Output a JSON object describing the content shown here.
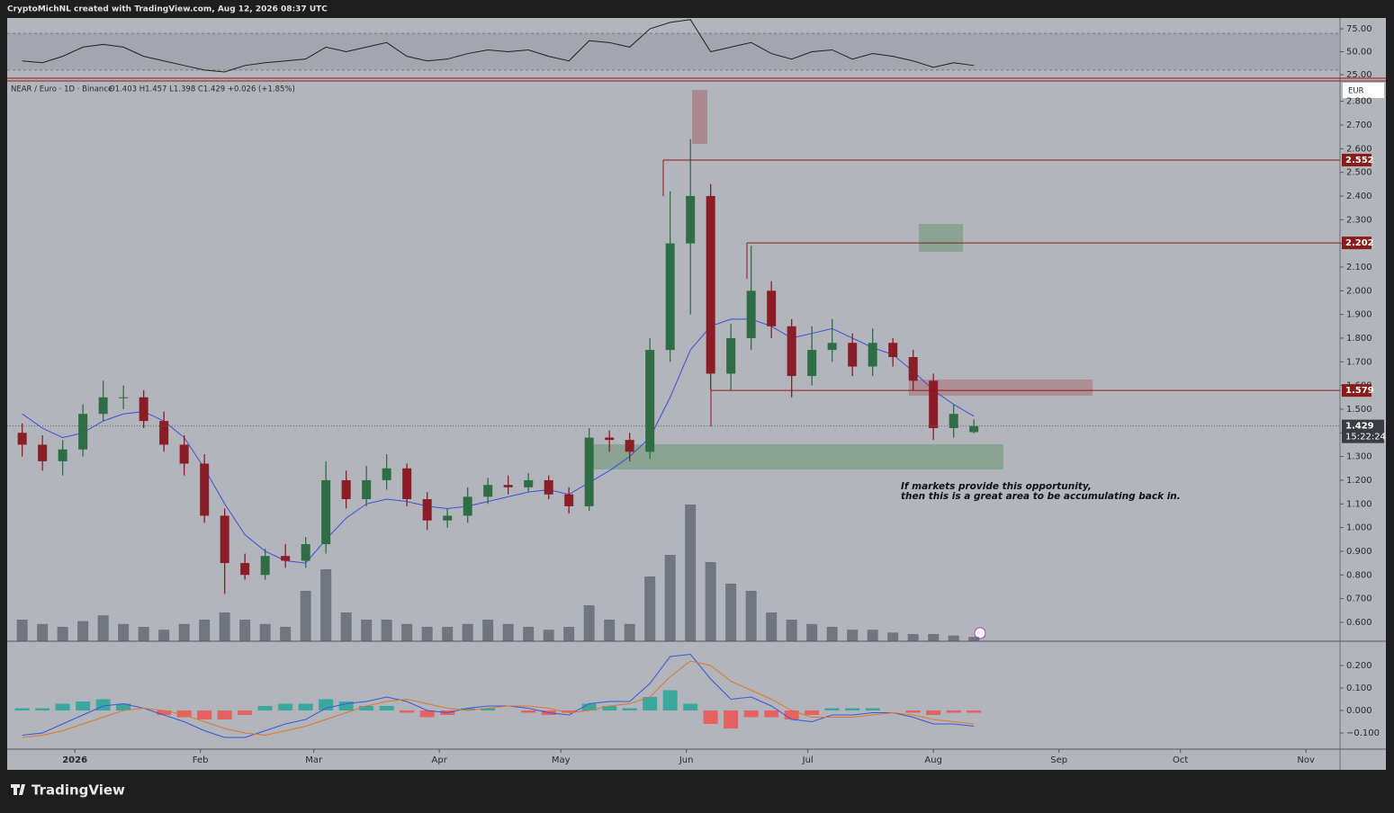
{
  "header": {
    "creator": "CryptoMichNL created with TradingView.com, Aug 12, 2026 08:37 UTC"
  },
  "footer": {
    "brand": "TradingView"
  },
  "chart_data": {
    "type": "candlestick",
    "title": "NEAR / Euro · 1D · Binance",
    "subtitle": "O1.403 H1.457 L1.398 C1.429 +0.026 (+1.85%)",
    "currency": "EUR",
    "countdown": "15:22:24",
    "annotation": [
      "If markets provide this opportunity,",
      "then this is a great area to be accumulating back in."
    ],
    "xlim": [
      -16.7,
      312.4
    ],
    "xticks": [
      {
        "value": 0,
        "label": "2026"
      },
      {
        "value": 31,
        "label": "Feb"
      },
      {
        "value": 59,
        "label": "Mar"
      },
      {
        "value": 90,
        "label": "Apr"
      },
      {
        "value": 120,
        "label": "May"
      },
      {
        "value": 151,
        "label": "Jun"
      },
      {
        "value": 181,
        "label": "Jul"
      },
      {
        "value": 212,
        "label": "Aug"
      },
      {
        "value": 243,
        "label": "Sep"
      },
      {
        "value": 273,
        "label": "Oct"
      },
      {
        "value": 304,
        "label": "Nov"
      }
    ],
    "ylim": [
      0.52,
      2.886
    ],
    "yticks": [
      {
        "value": 0.6,
        "label": "0.600"
      },
      {
        "value": 0.7,
        "label": "0.700"
      },
      {
        "value": 0.8,
        "label": "0.800"
      },
      {
        "value": 0.9,
        "label": "0.900"
      },
      {
        "value": 1.0,
        "label": "1.000"
      },
      {
        "value": 1.1,
        "label": "1.100"
      },
      {
        "value": 1.2,
        "label": "1.200"
      },
      {
        "value": 1.3,
        "label": "1.300"
      },
      {
        "value": 1.4,
        "label": "1.400"
      },
      {
        "value": 1.5,
        "label": "1.500"
      },
      {
        "value": 1.6,
        "label": "1.600"
      },
      {
        "value": 1.7,
        "label": "1.700"
      },
      {
        "value": 1.8,
        "label": "1.800"
      },
      {
        "value": 1.9,
        "label": "1.900"
      },
      {
        "value": 2.0,
        "label": "2.000"
      },
      {
        "value": 2.1,
        "label": "2.100"
      },
      {
        "value": 2.2,
        "label": "2.200"
      },
      {
        "value": 2.3,
        "label": "2.300"
      },
      {
        "value": 2.4,
        "label": "2.400"
      },
      {
        "value": 2.5,
        "label": "2.500"
      },
      {
        "value": 2.6,
        "label": "2.600"
      },
      {
        "value": 2.7,
        "label": "2.700"
      },
      {
        "value": 2.8,
        "label": "2.800"
      }
    ],
    "x": [
      -13,
      -8,
      -3,
      2,
      7,
      12,
      17,
      22,
      27,
      32,
      37,
      42,
      47,
      52,
      57,
      62,
      67,
      72,
      77,
      82,
      87,
      92,
      97,
      102,
      107,
      112,
      117,
      122,
      127,
      132,
      137,
      142,
      147,
      152,
      157,
      162,
      167,
      172,
      177,
      182,
      187,
      192,
      197,
      202,
      207,
      212,
      217,
      222
    ],
    "open": [
      1.4,
      1.35,
      1.28,
      1.33,
      1.48,
      1.55,
      1.55,
      1.45,
      1.35,
      1.27,
      1.05,
      0.85,
      0.8,
      0.88,
      0.86,
      0.93,
      1.2,
      1.12,
      1.2,
      1.25,
      1.12,
      1.03,
      1.05,
      1.13,
      1.18,
      1.17,
      1.2,
      1.14,
      1.09,
      1.38,
      1.37,
      1.32,
      1.75,
      2.2,
      2.4,
      1.65,
      1.8,
      2.0,
      1.85,
      1.64,
      1.75,
      1.78,
      1.68,
      1.78,
      1.72,
      1.62,
      1.42,
      1.403
    ],
    "high": [
      1.44,
      1.39,
      1.37,
      1.52,
      1.62,
      1.6,
      1.58,
      1.49,
      1.39,
      1.31,
      1.08,
      0.89,
      0.91,
      0.93,
      0.96,
      1.28,
      1.24,
      1.26,
      1.31,
      1.27,
      1.15,
      1.08,
      1.17,
      1.21,
      1.22,
      1.23,
      1.22,
      1.17,
      1.42,
      1.41,
      1.4,
      1.8,
      2.42,
      2.64,
      2.45,
      1.86,
      2.19,
      2.04,
      1.88,
      1.85,
      1.88,
      1.82,
      1.84,
      1.8,
      1.75,
      1.65,
      1.52,
      1.457
    ],
    "low": [
      1.3,
      1.24,
      1.22,
      1.3,
      1.45,
      1.5,
      1.42,
      1.32,
      1.22,
      1.02,
      0.72,
      0.78,
      0.78,
      0.83,
      0.83,
      0.89,
      1.08,
      1.09,
      1.16,
      1.09,
      0.99,
      1.0,
      1.02,
      1.1,
      1.14,
      1.15,
      1.12,
      1.06,
      1.07,
      1.32,
      1.28,
      1.29,
      1.7,
      1.9,
      1.58,
      1.58,
      1.75,
      1.8,
      1.55,
      1.6,
      1.7,
      1.64,
      1.64,
      1.68,
      1.58,
      1.37,
      1.38,
      1.398
    ],
    "close": [
      1.35,
      1.28,
      1.33,
      1.48,
      1.55,
      1.55,
      1.45,
      1.35,
      1.27,
      1.05,
      0.85,
      0.8,
      0.88,
      0.86,
      0.93,
      1.2,
      1.12,
      1.2,
      1.25,
      1.12,
      1.03,
      1.05,
      1.13,
      1.18,
      1.17,
      1.2,
      1.14,
      1.09,
      1.38,
      1.37,
      1.32,
      1.75,
      2.2,
      2.4,
      1.65,
      1.8,
      2.0,
      1.85,
      1.64,
      1.75,
      1.78,
      1.68,
      1.78,
      1.72,
      1.62,
      1.42,
      1.48,
      1.429
    ],
    "up_color": "#2f6e45",
    "down_color": "#8a1d25",
    "ma": [
      1.48,
      1.42,
      1.38,
      1.4,
      1.45,
      1.48,
      1.49,
      1.45,
      1.38,
      1.25,
      1.1,
      0.97,
      0.9,
      0.86,
      0.85,
      0.95,
      1.04,
      1.1,
      1.12,
      1.11,
      1.09,
      1.08,
      1.09,
      1.11,
      1.13,
      1.15,
      1.16,
      1.14,
      1.19,
      1.24,
      1.3,
      1.38,
      1.55,
      1.75,
      1.85,
      1.88,
      1.88,
      1.85,
      1.8,
      1.82,
      1.84,
      1.8,
      1.76,
      1.73,
      1.66,
      1.58,
      1.52,
      1.47
    ],
    "ma_color": "#3f4fd8",
    "volume": [
      15,
      12,
      10,
      14,
      18,
      12,
      10,
      8,
      12,
      15,
      20,
      15,
      12,
      10,
      35,
      50,
      20,
      15,
      15,
      12,
      10,
      10,
      12,
      15,
      12,
      10,
      8,
      10,
      25,
      15,
      12,
      45,
      60,
      95,
      55,
      40,
      35,
      20,
      15,
      12,
      10,
      8,
      8,
      6,
      5,
      5,
      4,
      3
    ],
    "volume_lim": [
      0,
      100
    ],
    "volume_color": "#555a66",
    "levels": [
      2.552,
      2.202,
      1.579
    ],
    "level_color": "#8b1a1a",
    "rsi": {
      "ylim": [
        20.1,
        86.8
      ],
      "yticks": [
        {
          "value": 75,
          "label": "75.00"
        },
        {
          "value": 50,
          "label": "50.00"
        },
        {
          "value": 25,
          "label": "25.00"
        }
      ],
      "band": [
        30,
        70
      ],
      "color": "#222222",
      "values": [
        40,
        38,
        45,
        55,
        58,
        55,
        45,
        40,
        35,
        30,
        28,
        35,
        38,
        40,
        42,
        55,
        50,
        55,
        60,
        45,
        40,
        42,
        48,
        52,
        50,
        52,
        45,
        40,
        62,
        60,
        55,
        75,
        82,
        85,
        50,
        55,
        60,
        48,
        42,
        50,
        52,
        42,
        48,
        45,
        40,
        33,
        38,
        35
      ]
    },
    "macd": {
      "ylim": [
        -0.172,
        0.308
      ],
      "yticks": [
        {
          "value": 0.2,
          "label": "0.200"
        },
        {
          "value": 0.1,
          "label": "0.100"
        },
        {
          "value": 0,
          "label": "0.000"
        },
        {
          "value": -0.1,
          "label": "−0.100"
        }
      ],
      "macd": [
        -0.11,
        -0.1,
        -0.06,
        -0.02,
        0.02,
        0.03,
        0.01,
        -0.02,
        -0.05,
        -0.09,
        -0.12,
        -0.12,
        -0.09,
        -0.06,
        -0.04,
        0.01,
        0.03,
        0.04,
        0.06,
        0.04,
        0,
        -0.01,
        0.01,
        0.02,
        0.02,
        0.01,
        -0.01,
        -0.02,
        0.03,
        0.04,
        0.04,
        0.12,
        0.24,
        0.25,
        0.14,
        0.05,
        0.06,
        0.02,
        -0.04,
        -0.05,
        -0.02,
        -0.02,
        -0.01,
        -0.01,
        -0.03,
        -0.06,
        -0.06,
        -0.07
      ],
      "signal": [
        -0.12,
        -0.11,
        -0.09,
        -0.06,
        -0.03,
        0,
        0.01,
        0,
        -0.02,
        -0.05,
        -0.08,
        -0.1,
        -0.11,
        -0.09,
        -0.07,
        -0.04,
        -0.01,
        0.02,
        0.04,
        0.05,
        0.03,
        0.01,
        0,
        0.01,
        0.02,
        0.02,
        0.01,
        -0.01,
        0,
        0.02,
        0.03,
        0.06,
        0.15,
        0.22,
        0.2,
        0.13,
        0.09,
        0.05,
        0,
        -0.03,
        -0.03,
        -0.03,
        -0.02,
        -0.01,
        -0.02,
        -0.04,
        -0.05,
        -0.06
      ],
      "histogram": [
        0.01,
        0.01,
        0.03,
        0.04,
        0.05,
        0.03,
        0,
        -0.02,
        -0.03,
        -0.04,
        -0.04,
        -0.02,
        0.02,
        0.03,
        0.03,
        0.05,
        0.04,
        0.02,
        0.02,
        -0.01,
        -0.03,
        -0.02,
        0.01,
        0.01,
        0,
        -0.01,
        -0.02,
        -0.01,
        0.03,
        0.02,
        0.01,
        0.06,
        0.09,
        0.03,
        -0.06,
        -0.08,
        -0.03,
        -0.03,
        -0.04,
        -0.02,
        0.01,
        0.01,
        0.01,
        0,
        -0.01,
        -0.02,
        -0.01,
        -0.01
      ],
      "macd_color": "#3a56d8",
      "signal_color": "#e0762c",
      "hist_up_color": "#26a69a",
      "hist_down_color": "#ef5350"
    }
  }
}
